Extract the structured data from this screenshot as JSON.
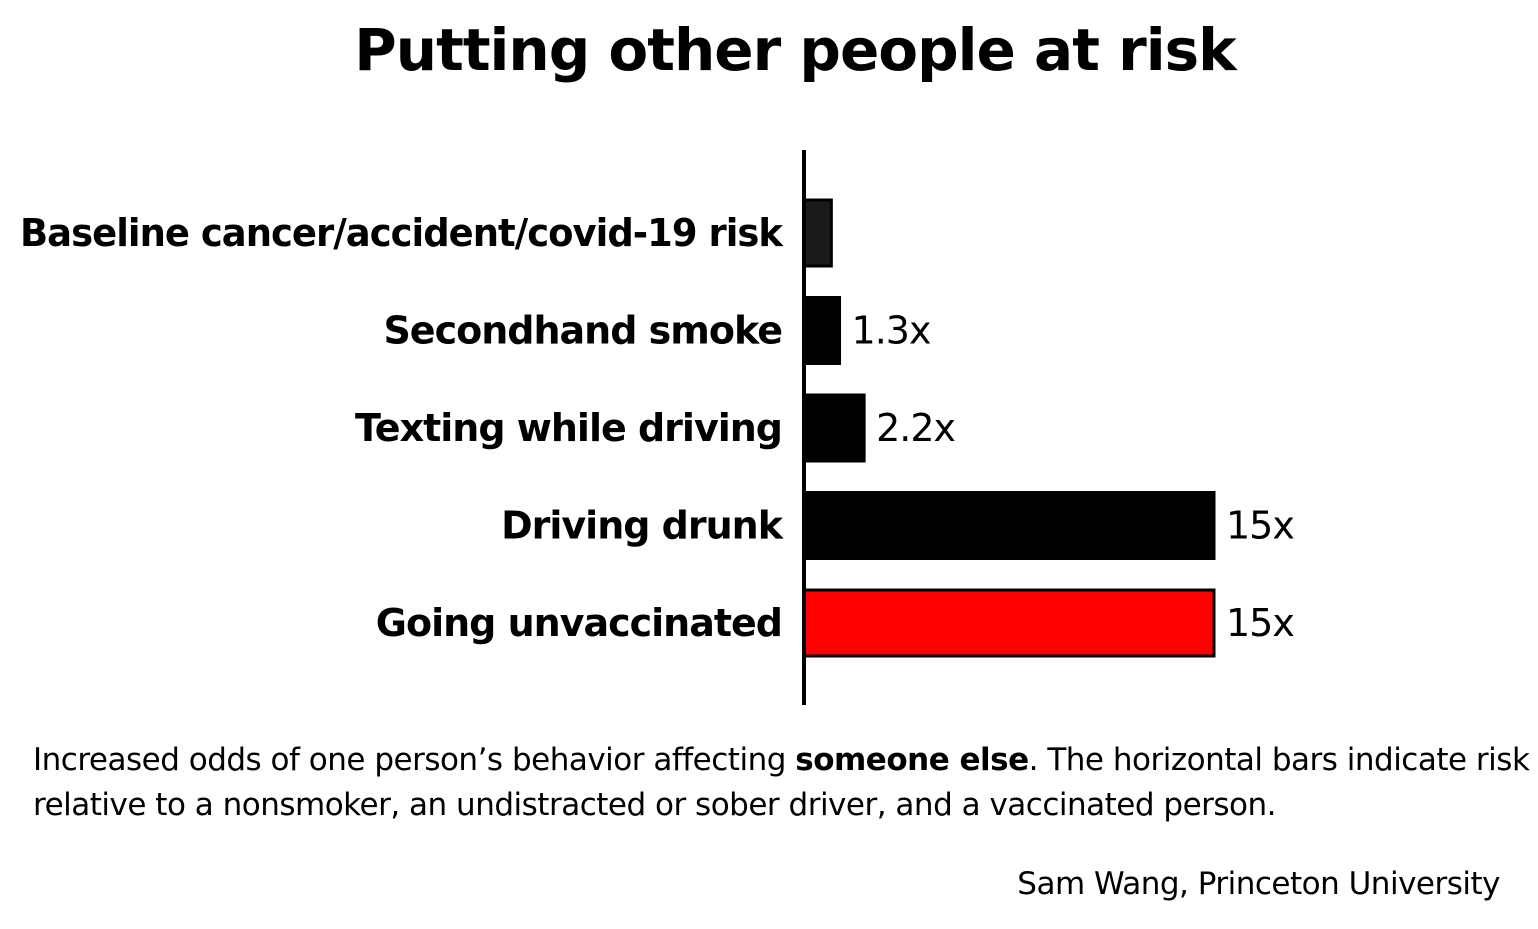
{
  "chart_data": {
    "type": "bar",
    "orientation": "horizontal",
    "title": "Putting other people at risk",
    "categories": [
      "Baseline cancer/accident/covid-19 risk",
      "Secondhand smoke",
      "Texting while driving",
      "Driving drunk",
      "Going unvaccinated"
    ],
    "values": [
      1,
      1.3,
      2.2,
      15,
      15
    ],
    "value_labels": [
      "",
      "1.3x",
      "2.2x",
      "15x",
      "15x"
    ],
    "bar_colors": [
      "#1a1a1a",
      "#000000",
      "#000000",
      "#000000",
      "#ff0000"
    ],
    "xlim": [
      0,
      15
    ],
    "grid": false,
    "legend": "none"
  },
  "caption": {
    "text_before": "Increased odds of one person’s behavior affecting ",
    "bold": "someone else",
    "text_after": ". The horizontal bars indicate risk relative to a nonsmoker, an undistracted or sober driver, and a vaccinated person."
  },
  "credit": "Sam Wang, Princeton University"
}
